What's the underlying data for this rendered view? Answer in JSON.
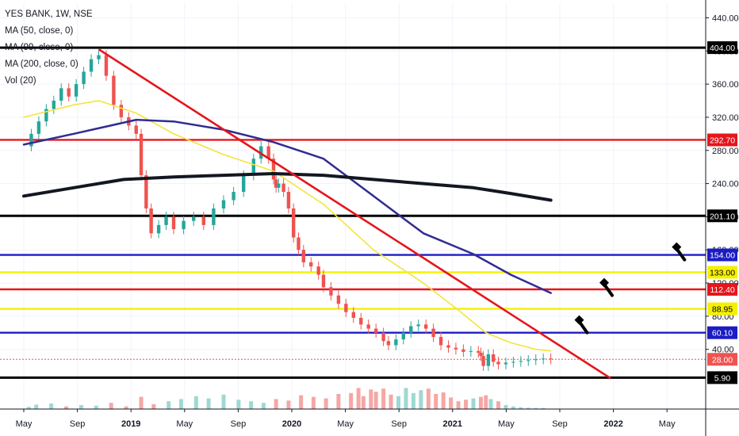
{
  "chart_data": {
    "type": "candlestick",
    "title": "YES BANK, 1W, NSE",
    "legend": [
      "MA (50, close, 0)",
      "MA (99, close, 0)",
      "MA (200, close, 0)",
      "Vol (20)"
    ],
    "y_axis": {
      "ticks": [
        40,
        80,
        120,
        160,
        200,
        240,
        280,
        320,
        360,
        400,
        440
      ],
      "tick_labels": [
        "40.00",
        "80.00",
        "120.00",
        "160.00",
        "200.00",
        "240.00",
        "280.00",
        "320.00",
        "360.00",
        "400.00",
        "440.00"
      ],
      "ylim": [
        -10,
        450
      ],
      "scale": "linear"
    },
    "x_axis": {
      "tick_labels": [
        "May",
        "Sep",
        "2019",
        "May",
        "Sep",
        "2020",
        "May",
        "Sep",
        "2021",
        "May",
        "Sep",
        "2022",
        "May"
      ],
      "bold_labels": [
        "2019",
        "2020",
        "2021",
        "2022"
      ]
    },
    "price_levels": [
      {
        "value": 404.0,
        "label": "404.00",
        "color": "#000000"
      },
      {
        "value": 292.7,
        "label": "292.70",
        "color": "#e5161c"
      },
      {
        "value": 201.1,
        "label": "201.10",
        "color": "#000000"
      },
      {
        "value": 154.0,
        "label": "154.00",
        "color": "#1c1cc4"
      },
      {
        "value": 133.0,
        "label": "133.00",
        "color": "#f5f000"
      },
      {
        "value": 112.4,
        "label": "112.40",
        "color": "#e5161c"
      },
      {
        "value": 88.95,
        "label": "88.95",
        "color": "#f5f000"
      },
      {
        "value": 60.1,
        "label": "60.10",
        "color": "#1c1cc4"
      },
      {
        "value": 28.0,
        "label": "28.00",
        "color": "#ef5350"
      },
      {
        "value": 5.9,
        "label": "5.90",
        "color": "#000000"
      }
    ],
    "close_series": [
      [
        0,
        285
      ],
      [
        0.3,
        300
      ],
      [
        0.6,
        315
      ],
      [
        0.9,
        330
      ],
      [
        1.2,
        340
      ],
      [
        1.5,
        355
      ],
      [
        1.8,
        345
      ],
      [
        2.1,
        360
      ],
      [
        2.4,
        375
      ],
      [
        2.7,
        390
      ],
      [
        3.0,
        395
      ],
      [
        3.3,
        370
      ],
      [
        3.6,
        335
      ],
      [
        3.9,
        320
      ],
      [
        4.2,
        310
      ],
      [
        4.5,
        300
      ],
      [
        4.7,
        250
      ],
      [
        4.9,
        210
      ],
      [
        5.1,
        180
      ],
      [
        5.4,
        190
      ],
      [
        5.7,
        200
      ],
      [
        6.0,
        185
      ],
      [
        6.4,
        195
      ],
      [
        6.8,
        200
      ],
      [
        7.2,
        190
      ],
      [
        7.6,
        210
      ],
      [
        8.0,
        220
      ],
      [
        8.4,
        230
      ],
      [
        8.8,
        250
      ],
      [
        9.2,
        270
      ],
      [
        9.5,
        285
      ],
      [
        9.8,
        270
      ],
      [
        10.0,
        245
      ],
      [
        10.1,
        235
      ],
      [
        10.2,
        240
      ],
      [
        10.4,
        230
      ],
      [
        10.6,
        210
      ],
      [
        10.8,
        175
      ],
      [
        11.0,
        160
      ],
      [
        11.2,
        145
      ],
      [
        11.5,
        140
      ],
      [
        11.8,
        130
      ],
      [
        12.0,
        115
      ],
      [
        12.3,
        105
      ],
      [
        12.6,
        95
      ],
      [
        12.9,
        85
      ],
      [
        13.2,
        78
      ],
      [
        13.5,
        70
      ],
      [
        13.8,
        65
      ],
      [
        14.1,
        60
      ],
      [
        14.4,
        50
      ],
      [
        14.6,
        45
      ],
      [
        14.9,
        52
      ],
      [
        15.2,
        60
      ],
      [
        15.5,
        68
      ],
      [
        15.8,
        70
      ],
      [
        16.1,
        65
      ],
      [
        16.4,
        55
      ],
      [
        16.7,
        45
      ],
      [
        17.0,
        42
      ],
      [
        17.3,
        40
      ],
      [
        17.6,
        37
      ],
      [
        17.9,
        38
      ],
      [
        18.2,
        36
      ],
      [
        18.3,
        32
      ],
      [
        18.4,
        20
      ],
      [
        18.6,
        34
      ],
      [
        18.8,
        25
      ],
      [
        19.0,
        22
      ],
      [
        19.3,
        24
      ],
      [
        19.6,
        25
      ],
      [
        19.9,
        26
      ],
      [
        20.2,
        27
      ],
      [
        20.5,
        28
      ],
      [
        20.8,
        29
      ],
      [
        21.1,
        28
      ]
    ],
    "ma_series": [
      {
        "name": "MA (50, close, 0)",
        "color": "#f5e33c",
        "width": 1.6,
        "points": [
          [
            0,
            320
          ],
          [
            2,
            335
          ],
          [
            3,
            340
          ],
          [
            4.5,
            325
          ],
          [
            6,
            300
          ],
          [
            8,
            275
          ],
          [
            10,
            255
          ],
          [
            12,
            215
          ],
          [
            14,
            160
          ],
          [
            16,
            120
          ],
          [
            17.5,
            85
          ],
          [
            18.5,
            60
          ],
          [
            19.5,
            48
          ],
          [
            20.5,
            40
          ],
          [
            21.1,
            38
          ]
        ]
      },
      {
        "name": "MA (99, close, 0)",
        "color": "#2f2c93",
        "width": 2.5,
        "points": [
          [
            0,
            287
          ],
          [
            2,
            300
          ],
          [
            4.5,
            317
          ],
          [
            6,
            315
          ],
          [
            8,
            305
          ],
          [
            10,
            290
          ],
          [
            12,
            270
          ],
          [
            14,
            225
          ],
          [
            16,
            180
          ],
          [
            18,
            155
          ],
          [
            19.5,
            130
          ],
          [
            21.1,
            108
          ]
        ]
      },
      {
        "name": "MA (200, close, 0)",
        "color": "#131722",
        "width": 4,
        "points": [
          [
            0,
            225
          ],
          [
            2,
            235
          ],
          [
            4,
            245
          ],
          [
            6,
            248
          ],
          [
            8,
            250
          ],
          [
            10,
            252
          ],
          [
            12,
            250
          ],
          [
            14,
            245
          ],
          [
            16,
            240
          ],
          [
            18,
            235
          ],
          [
            19.5,
            228
          ],
          [
            21.1,
            220
          ]
        ]
      }
    ],
    "volume": [
      [
        0.2,
        0.1
      ],
      [
        0.5,
        0.2
      ],
      [
        1.1,
        0.25
      ],
      [
        1.7,
        0.12
      ],
      [
        2.3,
        0.18
      ],
      [
        2.9,
        0.15
      ],
      [
        3.5,
        0.28
      ],
      [
        4.1,
        0.12
      ],
      [
        4.7,
        0.55
      ],
      [
        5.2,
        0.22
      ],
      [
        5.8,
        0.35
      ],
      [
        6.3,
        0.45
      ],
      [
        6.9,
        0.58
      ],
      [
        7.4,
        0.48
      ],
      [
        8.0,
        0.65
      ],
      [
        8.6,
        0.42
      ],
      [
        9.1,
        0.35
      ],
      [
        9.6,
        0.28
      ],
      [
        10.1,
        0.45
      ],
      [
        10.6,
        0.38
      ],
      [
        11.1,
        0.62
      ],
      [
        11.6,
        0.55
      ],
      [
        12.1,
        0.48
      ],
      [
        12.6,
        0.68
      ],
      [
        13.1,
        0.72
      ],
      [
        13.4,
        0.95
      ],
      [
        13.6,
        0.58
      ],
      [
        13.9,
        0.88
      ],
      [
        14.1,
        0.78
      ],
      [
        14.4,
        0.92
      ],
      [
        14.7,
        0.65
      ],
      [
        15.0,
        0.58
      ],
      [
        15.3,
        0.95
      ],
      [
        15.6,
        0.72
      ],
      [
        15.9,
        0.85
      ],
      [
        16.2,
        0.92
      ],
      [
        16.5,
        0.68
      ],
      [
        16.8,
        0.75
      ],
      [
        17.1,
        0.52
      ],
      [
        17.4,
        0.35
      ],
      [
        17.7,
        0.42
      ],
      [
        18.0,
        0.48
      ],
      [
        18.3,
        0.55
      ],
      [
        18.5,
        0.62
      ],
      [
        18.7,
        0.45
      ],
      [
        19.0,
        0.35
      ],
      [
        19.3,
        0.18
      ],
      [
        19.6,
        0.12
      ],
      [
        19.9,
        0.08
      ],
      [
        20.2,
        0.06
      ],
      [
        20.5,
        0.05
      ],
      [
        20.8,
        0.05
      ]
    ],
    "trendline": {
      "from": [
        3.0,
        402
      ],
      "to": [
        23.5,
        5
      ]
    },
    "annotations": [
      {
        "name": "hammer-marker-1",
        "pos": [
          22.3,
          64
        ],
        "scale": 1.0
      },
      {
        "name": "hammer-marker-2",
        "pos": [
          23.3,
          109
        ],
        "scale": 1.0
      },
      {
        "name": "hammer-marker-3",
        "pos": [
          26.2,
          152
        ],
        "scale": 1.0
      },
      {
        "name": "hammer-marker-4",
        "pos": [
          29.3,
          179
        ],
        "scale": 1.4
      }
    ],
    "colors": {
      "up": "#26a69a",
      "down": "#ef5350",
      "grid": "#f0f3fa",
      "axis": "#131722"
    }
  }
}
